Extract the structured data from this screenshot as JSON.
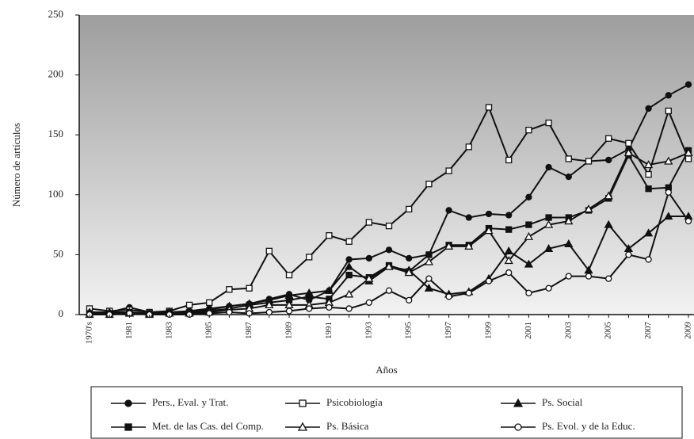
{
  "chart_data": {
    "type": "line",
    "y_label": "Número de artículos",
    "x_label": "Años",
    "categories": [
      "1970's",
      null,
      "1981",
      null,
      "1983",
      null,
      "1985",
      null,
      "1987",
      null,
      "1989",
      null,
      "1991",
      null,
      "1993",
      null,
      "1995",
      null,
      "1997",
      null,
      "1999",
      null,
      "2001",
      null,
      "2003",
      null,
      "2005",
      null,
      "2007",
      null,
      "2009"
    ],
    "ylim": [
      0,
      250
    ],
    "yticks": [
      0,
      50,
      100,
      150,
      200,
      250
    ],
    "legend": "bottom",
    "series": [
      {
        "name": "Pers., Eval. y Trat.",
        "color": "#111111",
        "marker": "circle",
        "filled": true,
        "values": [
          2,
          2,
          6,
          2,
          2,
          3,
          5,
          7,
          9,
          13,
          17,
          12,
          20,
          46,
          47,
          54,
          47,
          50,
          87,
          81,
          84,
          83,
          98,
          123,
          115,
          128,
          129,
          138,
          172,
          183,
          192
        ]
      },
      {
        "name": "Psicobiología",
        "color": "#111111",
        "marker": "square",
        "filled": false,
        "values": [
          5,
          3,
          4,
          2,
          3,
          8,
          10,
          21,
          22,
          53,
          33,
          48,
          66,
          61,
          77,
          74,
          88,
          109,
          120,
          140,
          173,
          129,
          154,
          160,
          130,
          128,
          147,
          143,
          117,
          170,
          130
        ]
      },
      {
        "name": "Ps. Social",
        "color": "#111111",
        "marker": "triangle",
        "filled": true,
        "values": [
          2,
          2,
          2,
          1,
          2,
          2,
          4,
          7,
          9,
          12,
          16,
          18,
          20,
          40,
          28,
          40,
          37,
          22,
          17,
          19,
          30,
          53,
          42,
          55,
          59,
          37,
          75,
          55,
          68,
          82,
          82
        ]
      },
      {
        "name": "Met. de las Cas. del Comp.",
        "color": "#111111",
        "marker": "square",
        "filled": true,
        "values": [
          1,
          1,
          2,
          1,
          2,
          2,
          3,
          5,
          8,
          10,
          12,
          15,
          13,
          33,
          31,
          41,
          36,
          50,
          58,
          58,
          72,
          71,
          75,
          81,
          81,
          87,
          97,
          133,
          105,
          106,
          137
        ]
      },
      {
        "name": "Ps. Básica",
        "color": "#111111",
        "marker": "triangle",
        "filled": false,
        "values": [
          0,
          0,
          1,
          0,
          1,
          1,
          2,
          4,
          5,
          8,
          8,
          8,
          10,
          17,
          30,
          40,
          35,
          44,
          57,
          57,
          70,
          45,
          65,
          75,
          78,
          88,
          99,
          135,
          125,
          128,
          135
        ]
      },
      {
        "name": "Ps. Evol. y de la Educ.",
        "color": "#111111",
        "marker": "circle",
        "filled": false,
        "values": [
          0,
          0,
          1,
          0,
          0,
          0,
          1,
          2,
          1,
          2,
          3,
          5,
          6,
          5,
          10,
          20,
          12,
          30,
          15,
          18,
          28,
          35,
          18,
          22,
          32,
          32,
          30,
          50,
          46,
          102,
          78
        ]
      }
    ]
  }
}
